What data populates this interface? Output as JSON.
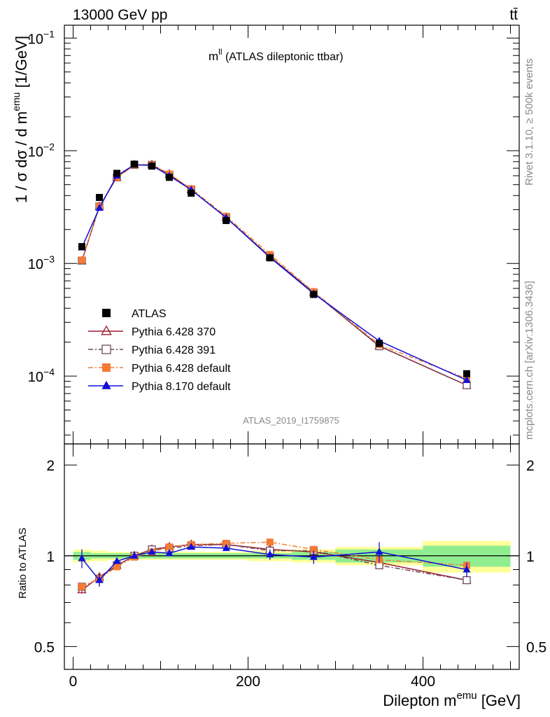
{
  "header": {
    "energy_label": "13000 GeV pp",
    "process_label": "tt̄",
    "observable_title_main": "m",
    "observable_title_sup": "ll",
    "observable_title_rest": " (ATLAS dileptonic ttbar)",
    "analysis_id": "ATLAS_2019_I1759875",
    "side_label_rivet": "Rivet 3.1.10, ≥ 500k events",
    "side_label_mcplots": "mcplots.cern.ch [arXiv:1306.3436]"
  },
  "axes": {
    "ylabel_main": "1 / σ  dσ / d m",
    "ylabel_main_sup": "emu",
    "ylabel_main_unit": " [1/GeV]",
    "ylabel_ratio": "Ratio to ATLAS",
    "xlabel": "Dilepton m",
    "xlabel_sup": "emu",
    "xlabel_unit": " [GeV]",
    "main_ytick_labels": [
      {
        "base": "10",
        "exp": "−4",
        "value": 0.0001
      },
      {
        "base": "10",
        "exp": "−3",
        "value": 0.001
      },
      {
        "base": "10",
        "exp": "−2",
        "value": 0.01
      },
      {
        "base": "10",
        "exp": "−1",
        "value": 0.1
      }
    ],
    "ratio_ytick_labels": [
      "0.5",
      "1",
      "2"
    ],
    "xtick_labels": [
      "0",
      "200",
      "400"
    ]
  },
  "legend": [
    {
      "label": "ATLAS"
    },
    {
      "label": "Pythia 6.428 370"
    },
    {
      "label": "Pythia 6.428 391"
    },
    {
      "label": "Pythia 6.428 default"
    },
    {
      "label": "Pythia 8.170 default"
    }
  ],
  "chart_data": [
    {
      "type": "scatter",
      "panel": "main",
      "yscale": "log",
      "xlim": [
        -10,
        510
      ],
      "ylim": [
        2.5e-05,
        0.13
      ],
      "x": [
        10,
        30,
        50,
        70,
        90,
        110,
        135,
        175,
        225,
        275,
        350,
        450
      ],
      "series": [
        {
          "name": "ATLAS",
          "color": "#000000",
          "marker": "square",
          "values": [
            0.00141,
            0.00385,
            0.0063,
            0.0076,
            0.0073,
            0.0058,
            0.0042,
            0.0024,
            0.00112,
            0.00053,
            0.000195,
            0.000105
          ]
        },
        {
          "name": "Pythia 6.428 370",
          "color": "#9b1b30",
          "marker": "triangle-open",
          "dash": "solid",
          "values": [
            0.00105,
            0.0032,
            0.0058,
            0.0075,
            0.0075,
            0.0062,
            0.0045,
            0.00255,
            0.00115,
            0.00055,
            0.000185,
            8.3e-05
          ]
        },
        {
          "name": "Pythia 6.428 391",
          "color": "#6e4a5c",
          "marker": "square-open",
          "dash": "dash-dot",
          "values": [
            0.00106,
            0.0032,
            0.0058,
            0.0075,
            0.0075,
            0.0061,
            0.0045,
            0.00255,
            0.00115,
            0.00055,
            0.000184,
            8.3e-05
          ]
        },
        {
          "name": "Pythia 6.428 default",
          "color": "#f47b35",
          "marker": "square",
          "dash": "dash-dot",
          "values": [
            0.00107,
            0.0032,
            0.0058,
            0.0075,
            0.0075,
            0.0062,
            0.0046,
            0.00262,
            0.0012,
            0.00056,
            0.00019,
            9.5e-05
          ]
        },
        {
          "name": "Pythia 8.170 default",
          "color": "#1010d8",
          "marker": "triangle",
          "dash": "solid",
          "values": [
            0.00138,
            0.0031,
            0.006,
            0.0075,
            0.0074,
            0.006,
            0.0045,
            0.00255,
            0.00113,
            0.00054,
            0.000205,
            9.2e-05
          ]
        }
      ]
    },
    {
      "type": "line",
      "panel": "ratio",
      "yscale": "log",
      "xlim": [
        -10,
        510
      ],
      "ylim": [
        0.42,
        2.35
      ],
      "x": [
        10,
        30,
        50,
        70,
        90,
        110,
        135,
        175,
        225,
        275,
        350,
        450
      ],
      "bands": {
        "bin_edges": [
          0,
          20,
          40,
          60,
          80,
          100,
          120,
          150,
          200,
          250,
          300,
          400,
          500
        ],
        "stat_half_width": [
          0.03,
          0.02,
          0.02,
          0.02,
          0.02,
          0.02,
          0.02,
          0.02,
          0.02,
          0.03,
          0.05,
          0.08
        ],
        "total_half_width": [
          0.05,
          0.04,
          0.03,
          0.03,
          0.03,
          0.03,
          0.03,
          0.03,
          0.04,
          0.05,
          0.07,
          0.12
        ],
        "stat_color": "#90ee90",
        "total_color": "#ffff99"
      },
      "series": [
        {
          "name": "Pythia 6.428 370",
          "color": "#9b1b30",
          "marker": "triangle-open",
          "dash": "solid",
          "values": [
            0.77,
            0.85,
            0.93,
            1.0,
            1.05,
            1.07,
            1.09,
            1.09,
            1.05,
            1.03,
            0.95,
            0.83
          ],
          "errors": [
            0.02,
            0.01,
            0.01,
            0.01,
            0.01,
            0.01,
            0.01,
            0.01,
            0.01,
            0.01,
            0.01,
            0.02
          ]
        },
        {
          "name": "Pythia 6.428 391",
          "color": "#6e4a5c",
          "marker": "square-open",
          "dash": "dash-dot",
          "values": [
            0.79,
            0.84,
            0.93,
            1.0,
            1.05,
            1.06,
            1.08,
            1.09,
            1.04,
            1.04,
            0.93,
            0.83
          ],
          "errors": [
            0.02,
            0.01,
            0.01,
            0.01,
            0.01,
            0.01,
            0.01,
            0.01,
            0.01,
            0.01,
            0.01,
            0.02
          ]
        },
        {
          "name": "Pythia 6.428 default",
          "color": "#f47b35",
          "marker": "square",
          "dash": "dash-dot",
          "values": [
            0.79,
            0.84,
            0.92,
            0.99,
            1.03,
            1.07,
            1.09,
            1.1,
            1.11,
            1.05,
            0.97,
            0.93
          ],
          "errors": [
            0.02,
            0.01,
            0.01,
            0.01,
            0.01,
            0.01,
            0.01,
            0.01,
            0.01,
            0.01,
            0.01,
            0.02
          ]
        },
        {
          "name": "Pythia 8.170 default",
          "color": "#1010d8",
          "marker": "triangle",
          "dash": "solid",
          "values": [
            0.98,
            0.83,
            0.96,
            1.0,
            1.03,
            1.02,
            1.07,
            1.06,
            1.01,
            0.99,
            1.03,
            0.9
          ],
          "errors": [
            0.07,
            0.04,
            0.02,
            0.02,
            0.02,
            0.02,
            0.02,
            0.02,
            0.04,
            0.05,
            0.08,
            0.05
          ]
        }
      ]
    }
  ]
}
